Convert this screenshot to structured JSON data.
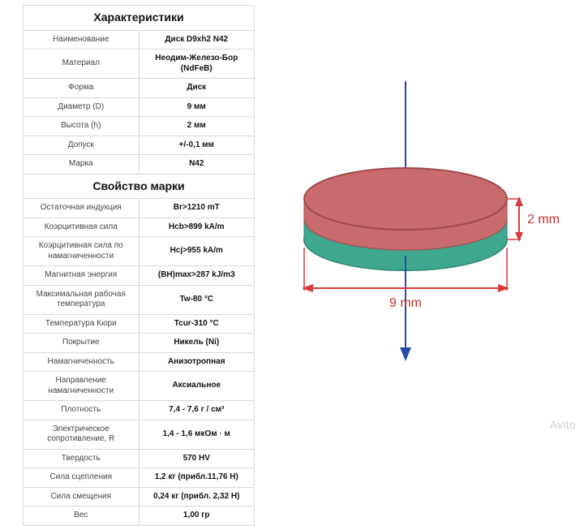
{
  "sections": [
    {
      "title": "Характеристики",
      "rows": [
        {
          "label": "Наименование",
          "value": "Диск D9xh2 N42"
        },
        {
          "label": "Материал",
          "value": "Неодим-Железо-Бор (NdFeB)"
        },
        {
          "label": "Форма",
          "value": "Диск"
        },
        {
          "label": "Диаметр (D)",
          "value": "9 мм"
        },
        {
          "label": "Высота (h)",
          "value": "2 мм"
        },
        {
          "label": "Допуск",
          "value": "+/-0,1 мм"
        },
        {
          "label": "Марка",
          "value": "N42"
        }
      ]
    },
    {
      "title": "Свойство марки",
      "rows": [
        {
          "label": "Остаточная индукция",
          "value": "Br>1210 mT"
        },
        {
          "label": "Коэрцитивная сила",
          "value": "Hcb>899 kA/m"
        },
        {
          "label": "Коэрцитивная сила по намагниченности",
          "value": "Hcj>955 kA/m"
        },
        {
          "label": "Магнитная энергия",
          "value": "(BH)max>287 kJ/m3"
        },
        {
          "label": "Максимальная рабочая температура",
          "value": "Tw-80 °C"
        },
        {
          "label": "Температура Кюри",
          "value": "Tcur-310 °C"
        },
        {
          "label": "Покрытие",
          "value": "Никель (Ni)"
        },
        {
          "label": "Намагниченность",
          "value": "Анизотропная"
        },
        {
          "label": "Направление намагниченности",
          "value": "Аксиальное"
        },
        {
          "label": "Плотность",
          "value": "7,4 - 7,6 г / см³"
        },
        {
          "label": "Электрическое сопротивление, R",
          "value": "1,4 - 1,6 мкОм · м"
        },
        {
          "label": "Твердость",
          "value": "570 HV"
        },
        {
          "label": "Сила сцепления",
          "value": "1,2 кг (прибл.11,76 Н)"
        },
        {
          "label": "Сила смещения",
          "value": "0,24 кг (прибл. 2,32 Н)"
        },
        {
          "label": "Вес",
          "value": "1,00 гр"
        }
      ]
    }
  ],
  "diagram": {
    "width_label": "9 mm",
    "height_label": "2 mm",
    "colors": {
      "top_fill": "#c96a6d",
      "top_stroke": "#a04a4f",
      "side_red": "#c96a6d",
      "side_green": "#3fa78d",
      "bottom_stroke": "#2e8670",
      "axis_line": "#2b4aa8",
      "dim_line": "#d63b3b",
      "dim_text": "#c23030"
    }
  },
  "watermark": "Avito"
}
